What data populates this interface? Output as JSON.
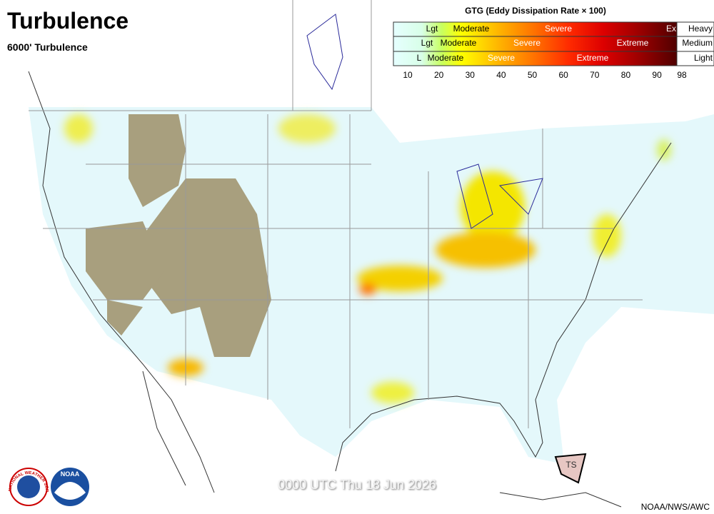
{
  "header": {
    "title": "Turbulence",
    "subtitle": "6000' Turbulence"
  },
  "legend": {
    "title": "GTG (Eddy Dissipation Rate × 100)",
    "rows": [
      {
        "labels": [
          "Lgt",
          "Moderate",
          "Severe",
          "Ex"
        ],
        "aircraft": "Heavy"
      },
      {
        "labels": [
          "Lgt",
          "Moderate",
          "Severe",
          "Extreme"
        ],
        "aircraft": "Medium"
      },
      {
        "labels": [
          "L",
          "Moderate",
          "Severe",
          "Extreme"
        ],
        "aircraft": "Light"
      }
    ],
    "scale": [
      10,
      20,
      30,
      40,
      50,
      60,
      70,
      80,
      90,
      98
    ]
  },
  "map": {
    "label": "TS"
  },
  "logos": [
    "NATIONAL WEATHER SERVICE",
    "NOAA"
  ],
  "footer": {
    "timestamp": "0000 UTC Thu 18 Jun 2026",
    "credit": "NOAA/NWS/AWC"
  }
}
